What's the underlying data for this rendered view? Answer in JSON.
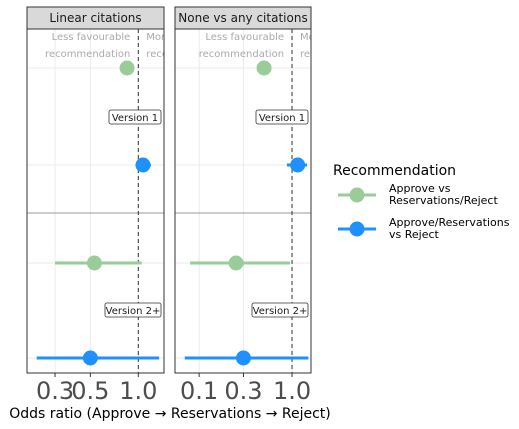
{
  "chart_data": {
    "type": "scatter",
    "subtype": "forest-plot",
    "xlabel": "Odds ratio (Approve → Reservations → Reject)",
    "x_scale": "log",
    "reference_line": 1.0,
    "grid": true,
    "legend": {
      "title": "Recommendation",
      "placement": "right",
      "items": [
        {
          "lines": [
            "Approve vs",
            "Reservations/Reject"
          ],
          "color": "#99cc99"
        },
        {
          "lines": [
            "Approve/Reservations",
            "vs Reject"
          ],
          "color": "#1e90ff"
        }
      ]
    },
    "annotations": {
      "left_lines": [
        "Less favourable",
        "recommendation"
      ],
      "right_lines": [
        "More",
        "reco"
      ]
    },
    "row_labels": [
      "Version 1",
      "Version 2+"
    ],
    "panels": [
      {
        "title": "Linear citations",
        "xlim": [
          0.2,
          1.45
        ],
        "ticks": [
          {
            "value": 0.3,
            "label": "0.3"
          },
          {
            "value": 0.5,
            "label": "0.5"
          },
          {
            "value": 1.0,
            "label": "1.0"
          }
        ],
        "series": [
          {
            "row": 1,
            "name": "Approve vs Reservations/Reject",
            "color": "#99cc99",
            "estimate": 0.85,
            "ci": [
              null,
              null
            ]
          },
          {
            "row": 1,
            "name": "Approve/Reservations vs Reject",
            "color": "#1e90ff",
            "estimate": 1.07,
            "ci": [
              0.96,
              1.2
            ]
          },
          {
            "row": 2,
            "name": "Approve vs Reservations/Reject",
            "color": "#99cc99",
            "estimate": 0.53,
            "ci": [
              0.3,
              1.05
            ]
          },
          {
            "row": 2,
            "name": "Approve/Reservations vs Reject",
            "color": "#1e90ff",
            "estimate": 0.5,
            "ci": [
              0.23,
              1.35
            ]
          }
        ]
      },
      {
        "title": "None vs any citations",
        "xlim": [
          0.055,
          1.6
        ],
        "ticks": [
          {
            "value": 0.1,
            "label": "0.1"
          },
          {
            "value": 0.3,
            "label": "0.3"
          },
          {
            "value": 1.0,
            "label": "1.0"
          }
        ],
        "series": [
          {
            "row": 1,
            "name": "Approve vs Reservations/Reject",
            "color": "#99cc99",
            "estimate": 0.5,
            "ci": [
              0.42,
              0.6
            ]
          },
          {
            "row": 1,
            "name": "Approve/Reservations vs Reject",
            "color": "#1e90ff",
            "estimate": 1.15,
            "ci": [
              0.88,
              1.45
            ]
          },
          {
            "row": 2,
            "name": "Approve vs Reservations/Reject",
            "color": "#99cc99",
            "estimate": 0.25,
            "ci": [
              0.08,
              0.95
            ]
          },
          {
            "row": 2,
            "name": "Approve/Reservations vs Reject",
            "color": "#1e90ff",
            "estimate": 0.3,
            "ci": [
              0.07,
              1.5
            ]
          }
        ]
      }
    ]
  }
}
